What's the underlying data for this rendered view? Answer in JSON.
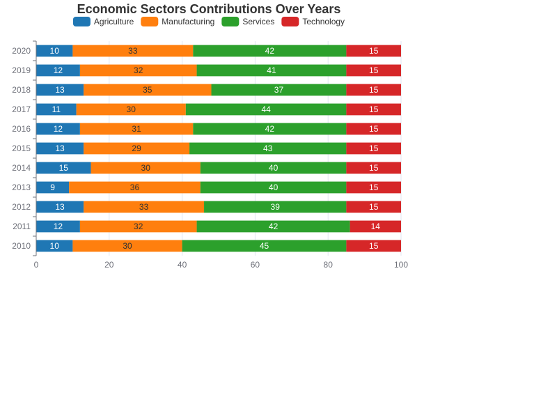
{
  "chart_data": {
    "type": "bar",
    "orientation": "horizontal",
    "stacked": true,
    "title": "Economic Sectors Contributions Over Years",
    "xlabel": "",
    "ylabel": "",
    "categories": [
      "2010",
      "2011",
      "2012",
      "2013",
      "2014",
      "2015",
      "2016",
      "2017",
      "2018",
      "2019",
      "2020"
    ],
    "series": [
      {
        "name": "Agriculture",
        "color": "#1f77b4",
        "label_color": "#ffffff",
        "values": [
          10,
          12,
          13,
          9,
          15,
          13,
          12,
          11,
          13,
          12,
          10
        ]
      },
      {
        "name": "Manufacturing",
        "color": "#ff7f0e",
        "label_color": "#333333",
        "values": [
          30,
          32,
          33,
          36,
          30,
          29,
          31,
          30,
          35,
          32,
          33
        ]
      },
      {
        "name": "Services",
        "color": "#2ca02c",
        "label_color": "#ffffff",
        "values": [
          45,
          42,
          39,
          40,
          40,
          43,
          42,
          44,
          37,
          41,
          42
        ]
      },
      {
        "name": "Technology",
        "color": "#d62728",
        "label_color": "#ffffff",
        "values": [
          15,
          14,
          15,
          15,
          15,
          15,
          15,
          15,
          15,
          15,
          15
        ]
      }
    ],
    "xlim": [
      0,
      100
    ],
    "xticks": [
      "0",
      "20",
      "40",
      "60",
      "80",
      "100"
    ],
    "grid": true,
    "legend_position": "top"
  }
}
